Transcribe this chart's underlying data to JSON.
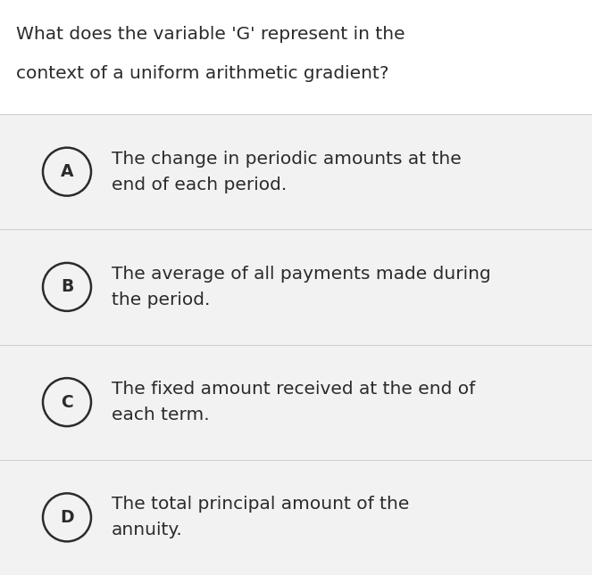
{
  "question_line1": "What does the variable 'G' represent in the",
  "question_line2": "context of a uniform arithmetic gradient?",
  "options": [
    {
      "label": "A",
      "text1": "The change in periodic amounts at the",
      "text2": "end of each period."
    },
    {
      "label": "B",
      "text1": "The average of all payments made during",
      "text2": "the period."
    },
    {
      "label": "C",
      "text1": "The fixed amount received at the end of",
      "text2": "each term."
    },
    {
      "label": "D",
      "text1": "The total principal amount of the",
      "text2": "annuity."
    }
  ],
  "bg_color": "#ffffff",
  "option_bg_color": "#f2f2f2",
  "question_font_size": 14.5,
  "option_font_size": 14.5,
  "label_font_size": 13.5,
  "text_color": "#2b2b2b",
  "circle_color": "#2b2b2b",
  "divider_color": "#d0d0d0",
  "fig_width": 6.63,
  "fig_height": 6.45,
  "dpi": 100
}
